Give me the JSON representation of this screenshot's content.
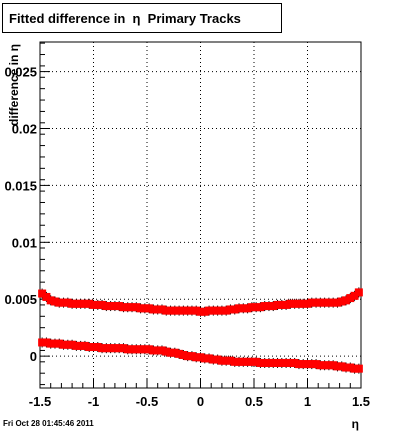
{
  "chart_data": {
    "type": "scatter",
    "title": "Fitted difference in  η  Primary Tracks",
    "xlabel": "η",
    "ylabel": "difference in η",
    "xlim": [
      -1.5,
      1.5
    ],
    "ylim": [
      -0.0028,
      0.0276
    ],
    "x_ticks": [
      -1.5,
      -1,
      -0.5,
      0,
      0.5,
      1,
      1.5
    ],
    "x_tick_labels": [
      "-1.5",
      "-1",
      "-0.5",
      "0",
      "0.5",
      "1",
      "1.5"
    ],
    "y_ticks": [
      0,
      0.005,
      0.01,
      0.015,
      0.02,
      0.025
    ],
    "y_tick_labels": [
      "0",
      "0.005",
      "0.01",
      "0.015",
      "0.02",
      "0.025"
    ],
    "grid": true,
    "marker_color": "#ff0000",
    "series": [
      {
        "x": [
          -1.48,
          -1.44,
          -1.4,
          -1.36,
          -1.32,
          -1.28,
          -1.24,
          -1.2,
          -1.16,
          -1.12,
          -1.08,
          -1.04,
          -1.0,
          -0.96,
          -0.92,
          -0.88,
          -0.84,
          -0.8,
          -0.76,
          -0.72,
          -0.68,
          -0.64,
          -0.6,
          -0.56,
          -0.52,
          -0.48,
          -0.44,
          -0.4,
          -0.36,
          -0.32,
          -0.28,
          -0.24,
          -0.2,
          -0.16,
          -0.12,
          -0.08,
          -0.04,
          0.0,
          0.04,
          0.08,
          0.12,
          0.16,
          0.2,
          0.24,
          0.28,
          0.32,
          0.36,
          0.4,
          0.44,
          0.48,
          0.52,
          0.56,
          0.6,
          0.64,
          0.68,
          0.72,
          0.76,
          0.8,
          0.84,
          0.88,
          0.92,
          0.96,
          1.0,
          1.04,
          1.08,
          1.12,
          1.16,
          1.2,
          1.24,
          1.28,
          1.32,
          1.36,
          1.4,
          1.44,
          1.48
        ],
        "y": [
          0.0055,
          0.0052,
          0.0049,
          0.0048,
          0.0047,
          0.0047,
          0.0047,
          0.0046,
          0.0046,
          0.0046,
          0.0046,
          0.0046,
          0.0045,
          0.0045,
          0.0045,
          0.0044,
          0.0044,
          0.0044,
          0.0044,
          0.0043,
          0.0043,
          0.0043,
          0.0043,
          0.0042,
          0.0042,
          0.0042,
          0.0041,
          0.0041,
          0.0041,
          0.004,
          0.004,
          0.004,
          0.004,
          0.004,
          0.004,
          0.004,
          0.004,
          0.0039,
          0.0039,
          0.004,
          0.004,
          0.004,
          0.004,
          0.004,
          0.0041,
          0.0041,
          0.0042,
          0.0042,
          0.0042,
          0.0043,
          0.0043,
          0.0043,
          0.0044,
          0.0044,
          0.0044,
          0.0045,
          0.0045,
          0.0045,
          0.0046,
          0.0046,
          0.0046,
          0.0046,
          0.0046,
          0.0047,
          0.0047,
          0.0047,
          0.0047,
          0.0047,
          0.0047,
          0.0047,
          0.0048,
          0.0049,
          0.0051,
          0.0053,
          0.0056
        ]
      },
      {
        "x": [
          -1.48,
          -1.44,
          -1.4,
          -1.36,
          -1.32,
          -1.28,
          -1.24,
          -1.2,
          -1.16,
          -1.12,
          -1.08,
          -1.04,
          -1.0,
          -0.96,
          -0.92,
          -0.88,
          -0.84,
          -0.8,
          -0.76,
          -0.72,
          -0.68,
          -0.64,
          -0.6,
          -0.56,
          -0.52,
          -0.48,
          -0.44,
          -0.4,
          -0.36,
          -0.32,
          -0.28,
          -0.24,
          -0.2,
          -0.16,
          -0.12,
          -0.08,
          -0.04,
          0.0,
          0.04,
          0.08,
          0.12,
          0.16,
          0.2,
          0.24,
          0.28,
          0.32,
          0.36,
          0.4,
          0.44,
          0.48,
          0.52,
          0.56,
          0.6,
          0.64,
          0.68,
          0.72,
          0.76,
          0.8,
          0.84,
          0.88,
          0.92,
          0.96,
          1.0,
          1.04,
          1.08,
          1.12,
          1.16,
          1.2,
          1.24,
          1.28,
          1.32,
          1.36,
          1.4,
          1.44,
          1.48
        ],
        "y": [
          0.0012,
          0.0012,
          0.0011,
          0.0011,
          0.0011,
          0.001,
          0.001,
          0.001,
          0.0009,
          0.0009,
          0.0009,
          0.0008,
          0.0008,
          0.0008,
          0.0007,
          0.0007,
          0.0007,
          0.0007,
          0.0007,
          0.0007,
          0.0006,
          0.0006,
          0.0006,
          0.0006,
          0.0006,
          0.0006,
          0.0005,
          0.0005,
          0.0005,
          0.0004,
          0.0003,
          0.0003,
          0.0002,
          0.0001,
          0.0,
          0.0,
          -0.0001,
          -0.0001,
          -0.0002,
          -0.0002,
          -0.0003,
          -0.0003,
          -0.0004,
          -0.0004,
          -0.0004,
          -0.0005,
          -0.0005,
          -0.0005,
          -0.0005,
          -0.0005,
          -0.0005,
          -0.0006,
          -0.0006,
          -0.0006,
          -0.0006,
          -0.0006,
          -0.0006,
          -0.0006,
          -0.0006,
          -0.0006,
          -0.0007,
          -0.0007,
          -0.0007,
          -0.0007,
          -0.0007,
          -0.0008,
          -0.0008,
          -0.0008,
          -0.0008,
          -0.0009,
          -0.0009,
          -0.001,
          -0.001,
          -0.0011,
          -0.0011
        ]
      }
    ]
  },
  "footer": {
    "timestamp": "Fri Oct 28 01:45:46 2011"
  }
}
